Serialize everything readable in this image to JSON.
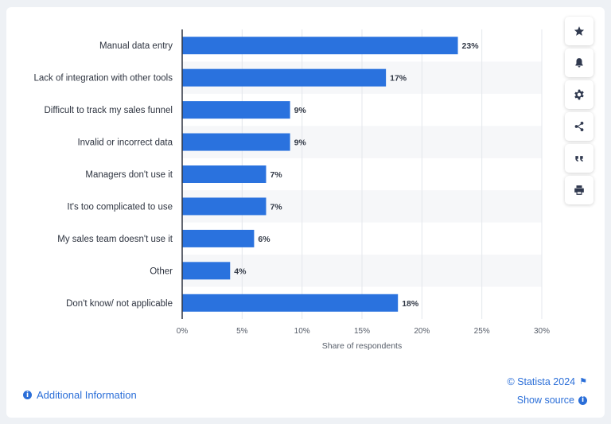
{
  "chart_data": {
    "type": "bar",
    "orientation": "horizontal",
    "categories": [
      "Manual data entry",
      "Lack of integration with other tools",
      "Difficult to track my sales funnel",
      "Invalid or incorrect data",
      "Managers don't use it",
      "It's too complicated to use",
      "My sales team doesn't use it",
      "Other",
      "Don't know/ not applicable"
    ],
    "values": [
      23,
      17,
      9,
      9,
      7,
      7,
      6,
      4,
      18
    ],
    "value_labels": [
      "23%",
      "17%",
      "9%",
      "9%",
      "7%",
      "7%",
      "6%",
      "4%",
      "18%"
    ],
    "xlabel": "Share of respondents",
    "ylabel": "",
    "xlim": [
      0,
      30
    ],
    "xticks": [
      0,
      5,
      10,
      15,
      20,
      25,
      30
    ],
    "xtick_labels": [
      "0%",
      "5%",
      "10%",
      "15%",
      "20%",
      "25%",
      "30%"
    ],
    "grid": true,
    "bar_color": "#2a72de",
    "stripe_color": "#f6f7f9"
  },
  "sidebar": {
    "buttons": [
      {
        "name": "favorite-button",
        "icon": "star-icon"
      },
      {
        "name": "notification-button",
        "icon": "bell-icon"
      },
      {
        "name": "settings-button",
        "icon": "gear-icon"
      },
      {
        "name": "share-button",
        "icon": "share-icon"
      },
      {
        "name": "cite-button",
        "icon": "quote-icon"
      },
      {
        "name": "print-button",
        "icon": "printer-icon"
      }
    ]
  },
  "footer": {
    "additional_info": "Additional Information",
    "copyright": "© Statista 2024",
    "show_source": "Show source"
  }
}
